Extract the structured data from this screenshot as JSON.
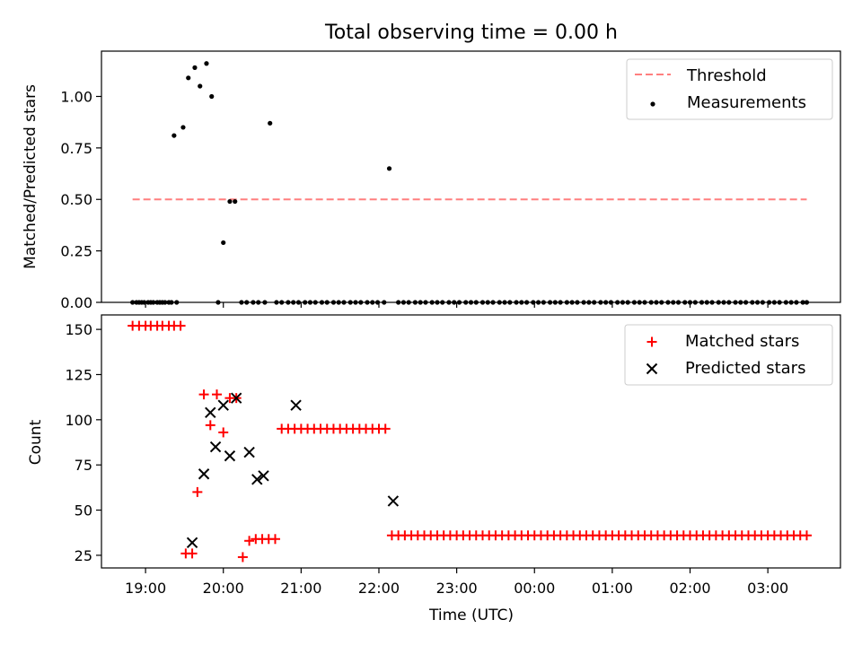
{
  "colors": {
    "threshold": "#ff7f7f",
    "measurements": "#000000",
    "matched": "#ff0000",
    "predicted": "#000000"
  },
  "chart_data": [
    {
      "type": "scatter",
      "title": "Total observing time = 0.00 h",
      "xlabel": "",
      "ylabel": "Matched/Predicted stars",
      "ylim": [
        0,
        1.22
      ],
      "yticks": [
        "0.00",
        "0.25",
        "0.50",
        "0.75",
        "1.00"
      ],
      "legend_position": "top-right",
      "threshold": {
        "name": "Threshold",
        "y": 0.5,
        "x_range": [
          "18:50",
          "03:30"
        ]
      },
      "series": [
        {
          "name": "Measurements",
          "x": [
            "18:50",
            "18:53",
            "18:55",
            "18:57",
            "18:59",
            "19:02",
            "19:04",
            "19:06",
            "19:09",
            "19:11",
            "19:13",
            "19:15",
            "19:18",
            "19:20",
            "19:22",
            "19:24",
            "19:29",
            "19:33",
            "19:38",
            "19:42",
            "19:47",
            "19:51",
            "19:56",
            "20:00",
            "20:05",
            "20:09",
            "20:14",
            "20:18",
            "20:23",
            "20:27",
            "20:32",
            "20:36",
            "20:41",
            "20:45",
            "20:50",
            "20:54",
            "20:58",
            "21:03",
            "21:07",
            "21:11",
            "21:16",
            "21:20",
            "21:25",
            "21:29",
            "21:33",
            "21:38",
            "21:42",
            "21:46",
            "21:51",
            "21:55",
            "21:59",
            "22:04",
            "22:08",
            "22:15",
            "22:19",
            "22:23",
            "22:28",
            "22:32",
            "22:36",
            "22:41",
            "22:45",
            "22:49",
            "22:54",
            "22:58",
            "23:02",
            "23:07",
            "23:11",
            "23:15",
            "23:20",
            "23:24",
            "23:28",
            "23:33",
            "23:37",
            "23:41",
            "23:46",
            "23:50",
            "23:54",
            "23:59",
            "00:03",
            "00:07",
            "00:12",
            "00:16",
            "00:20",
            "00:25",
            "00:29",
            "00:33",
            "00:38",
            "00:42",
            "00:46",
            "00:51",
            "00:55",
            "00:59",
            "01:04",
            "01:08",
            "01:12",
            "01:17",
            "01:21",
            "01:25",
            "01:30",
            "01:34",
            "01:38",
            "01:43",
            "01:47",
            "01:51",
            "01:56",
            "02:00",
            "02:04",
            "02:09",
            "02:13",
            "02:17",
            "02:22",
            "02:26",
            "02:30",
            "02:35",
            "02:39",
            "02:43",
            "02:48",
            "02:52",
            "02:56",
            "03:01",
            "03:05",
            "03:09",
            "03:14",
            "03:18",
            "03:22",
            "03:27",
            "03:30"
          ],
          "y": [
            0,
            0,
            0,
            0,
            0,
            0,
            0,
            0,
            0,
            0,
            0,
            0,
            0,
            0,
            0.81,
            0,
            0.85,
            1.09,
            1.14,
            1.05,
            1.16,
            1.0,
            0,
            0.29,
            0.49,
            0.49,
            0,
            0,
            0,
            0,
            0,
            0.87,
            0,
            0,
            0,
            0,
            0,
            0,
            0,
            0,
            0,
            0,
            0,
            0,
            0,
            0,
            0,
            0,
            0,
            0,
            0,
            0,
            0.65,
            0,
            0,
            0,
            0,
            0,
            0,
            0,
            0,
            0,
            0,
            0,
            0,
            0,
            0,
            0,
            0,
            0,
            0,
            0,
            0,
            0,
            0,
            0,
            0,
            0,
            0,
            0,
            0,
            0,
            0,
            0,
            0,
            0,
            0,
            0,
            0,
            0,
            0,
            0,
            0,
            0,
            0,
            0,
            0,
            0,
            0,
            0,
            0,
            0,
            0,
            0,
            0,
            0,
            0,
            0,
            0,
            0,
            0,
            0,
            0,
            0,
            0,
            0,
            0,
            0,
            0,
            0,
            0,
            0,
            0,
            0,
            0,
            0,
            0
          ]
        }
      ]
    },
    {
      "type": "scatter",
      "title": "",
      "xlabel": "Time (UTC)",
      "ylabel": "Count",
      "ylim": [
        18,
        158
      ],
      "yticks": [
        "25",
        "50",
        "75",
        "100",
        "125",
        "150"
      ],
      "xticks": [
        "19:00",
        "20:00",
        "21:00",
        "22:00",
        "23:00",
        "00:00",
        "01:00",
        "02:00",
        "03:00"
      ],
      "legend_position": "top-right",
      "series": [
        {
          "name": "Matched stars",
          "x": [
            "18:50",
            "18:55",
            "19:00",
            "19:04",
            "19:09",
            "19:13",
            "19:18",
            "19:22",
            "19:27",
            "19:31",
            "19:36",
            "19:40",
            "19:45",
            "19:50",
            "19:55",
            "20:00",
            "20:05",
            "20:10",
            "20:15",
            "20:20",
            "20:25",
            "20:30",
            "20:35",
            "20:40",
            "20:45",
            "20:50",
            "20:55",
            "21:00",
            "21:05",
            "21:10",
            "21:15",
            "21:20",
            "21:25",
            "21:30",
            "21:35",
            "21:40",
            "21:45",
            "21:50",
            "21:55",
            "22:00",
            "22:05",
            "22:10",
            "22:15",
            "22:20",
            "22:25",
            "22:30",
            "22:35",
            "22:40",
            "22:45",
            "22:50",
            "22:55",
            "23:00",
            "23:05",
            "23:10",
            "23:15",
            "23:20",
            "23:25",
            "23:30",
            "23:35",
            "23:40",
            "23:45",
            "23:50",
            "23:55",
            "00:00",
            "00:05",
            "00:10",
            "00:15",
            "00:20",
            "00:25",
            "00:30",
            "00:35",
            "00:40",
            "00:45",
            "00:50",
            "00:55",
            "01:00",
            "01:05",
            "01:10",
            "01:15",
            "01:20",
            "01:25",
            "01:30",
            "01:35",
            "01:40",
            "01:45",
            "01:50",
            "01:55",
            "02:00",
            "02:05",
            "02:10",
            "02:15",
            "02:20",
            "02:25",
            "02:30",
            "02:35",
            "02:40",
            "02:45",
            "02:50",
            "02:55",
            "03:00",
            "03:05",
            "03:10",
            "03:15",
            "03:20",
            "03:25",
            "03:30"
          ],
          "y": [
            152,
            152,
            152,
            152,
            152,
            152,
            152,
            152,
            152,
            26,
            26,
            60,
            114,
            97,
            114,
            93,
            112,
            112,
            24,
            33,
            34,
            34,
            34,
            34,
            95,
            95,
            95,
            95,
            95,
            95,
            95,
            95,
            95,
            95,
            95,
            95,
            95,
            95,
            95,
            95,
            95,
            36,
            36,
            36,
            36,
            36,
            36,
            36,
            36,
            36,
            36,
            36,
            36,
            36,
            36,
            36,
            36,
            36,
            36,
            36,
            36,
            36,
            36,
            36,
            36,
            36,
            36,
            36,
            36,
            36,
            36,
            36,
            36,
            36,
            36,
            36,
            36,
            36,
            36,
            36,
            36,
            36,
            36,
            36,
            36,
            36,
            36,
            36,
            36,
            36,
            36,
            36,
            36,
            36,
            36,
            36,
            36,
            36,
            36,
            36,
            36,
            36,
            36,
            36,
            36,
            36
          ]
        },
        {
          "name": "Predicted stars",
          "x": [
            "19:36",
            "19:45",
            "19:50",
            "19:54",
            "20:00",
            "20:05",
            "20:10",
            "20:20",
            "20:26",
            "20:31",
            "20:56",
            "22:11"
          ],
          "y": [
            32,
            70,
            104,
            85,
            108,
            80,
            112,
            82,
            67,
            69,
            108,
            55
          ]
        }
      ]
    }
  ]
}
